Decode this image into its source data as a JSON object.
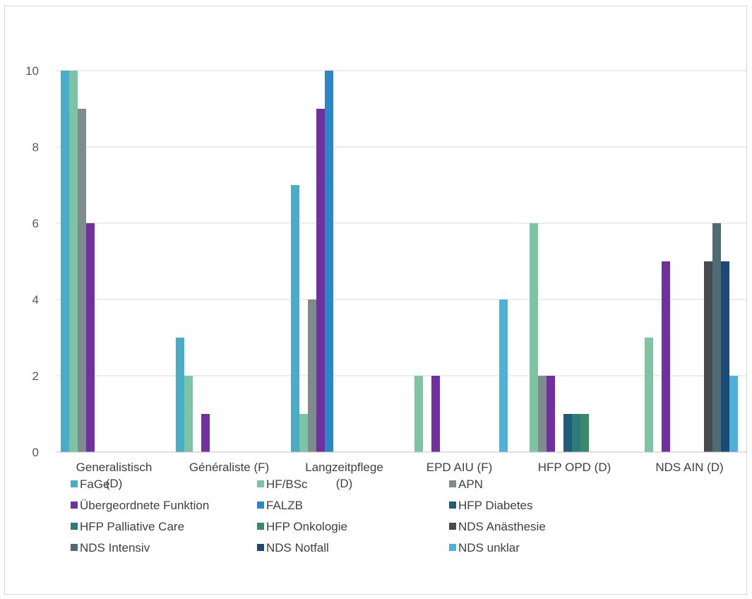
{
  "chart_data": {
    "type": "bar",
    "title": "",
    "xlabel": "",
    "ylabel": "",
    "ylim": [
      0,
      10
    ],
    "yticks": [
      0,
      2,
      4,
      6,
      8,
      10
    ],
    "grid": "horizontal",
    "legend_position": "bottom",
    "categories": [
      [
        "Generalistisch",
        "(D)"
      ],
      [
        "Généraliste (F)"
      ],
      [
        "Langzeitpflege",
        "(D)"
      ],
      [
        "EPD AIU (F)"
      ],
      [
        "HFP OPD (D)"
      ],
      [
        "NDS AIN (D)"
      ]
    ],
    "series": [
      {
        "name": "FaGe",
        "color": "#4bacc6",
        "values": [
          10,
          3,
          7,
          0,
          0,
          0
        ]
      },
      {
        "name": "HF/BSc",
        "color": "#7dc4a5",
        "values": [
          10,
          2,
          1,
          2,
          6,
          3
        ]
      },
      {
        "name": "APN",
        "color": "#7f8c8d",
        "values": [
          9,
          0,
          4,
          0,
          2,
          0
        ]
      },
      {
        "name": "Übergeordnete Funktion",
        "color": "#7030a0",
        "values": [
          6,
          1,
          9,
          2,
          2,
          5
        ]
      },
      {
        "name": "FALZB",
        "color": "#2e86c9",
        "values": [
          0,
          0,
          10,
          0,
          0,
          0
        ]
      },
      {
        "name": "HFP Diabetes",
        "color": "#1f5c78",
        "values": [
          0,
          0,
          0,
          0,
          1,
          0
        ]
      },
      {
        "name": "HFP Palliative Care",
        "color": "#2e7b7b",
        "values": [
          0,
          0,
          0,
          0,
          1,
          0
        ]
      },
      {
        "name": "HFP Onkologie",
        "color": "#3a8a6a",
        "values": [
          0,
          0,
          0,
          0,
          1,
          0
        ]
      },
      {
        "name": "NDS Anästhesie",
        "color": "#444c52",
        "values": [
          0,
          0,
          0,
          0,
          0,
          5
        ]
      },
      {
        "name": "NDS Intensiv",
        "color": "#4e6a72",
        "values": [
          0,
          0,
          0,
          0,
          0,
          6
        ]
      },
      {
        "name": "NDS Notfall",
        "color": "#1a4a75",
        "values": [
          0,
          0,
          0,
          0,
          0,
          5
        ]
      },
      {
        "name": "NDS unklar",
        "color": "#4fb0d8",
        "values": [
          0,
          0,
          0,
          4,
          0,
          2
        ]
      }
    ]
  }
}
